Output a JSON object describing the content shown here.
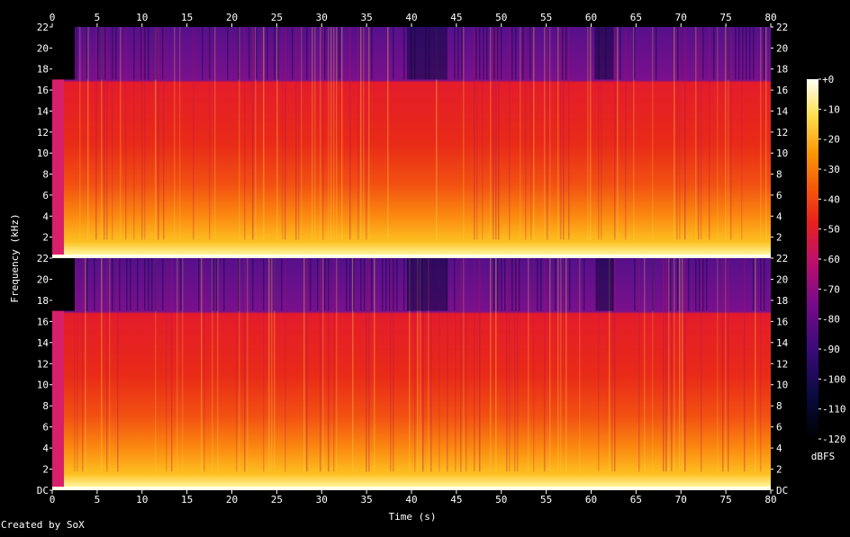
{
  "chart_data": {
    "type": "heatmap",
    "title": "",
    "xlabel": "Time (s)",
    "ylabel": "Frequency (kHz)",
    "xlim": [
      0,
      80
    ],
    "ylim_khz": [
      0,
      22
    ],
    "x_ticks": [
      "0",
      "5",
      "10",
      "15",
      "20",
      "25",
      "30",
      "35",
      "40",
      "45",
      "50",
      "55",
      "60",
      "65",
      "70",
      "75",
      "80"
    ],
    "y_ticks": [
      "DC",
      "2",
      "4",
      "6",
      "8",
      "10",
      "12",
      "14",
      "16",
      "18",
      "20",
      "22"
    ],
    "channels": 2,
    "colorbar": {
      "label": "dBFS",
      "ticks": [
        "+0",
        "-10",
        "-20",
        "-30",
        "-40",
        "-50",
        "-60",
        "-70",
        "-80",
        "-90",
        "-100",
        "-110",
        "-120"
      ],
      "range": [
        -120,
        0
      ]
    },
    "spectrum": {
      "lowpass_cutoff_khz": 17,
      "silence_start_s": [
        0,
        2.5
      ],
      "quieter_sections_s": [
        [
          39.5,
          44
        ],
        [
          60.5,
          62.5
        ]
      ]
    }
  },
  "footer": "Created by SoX"
}
